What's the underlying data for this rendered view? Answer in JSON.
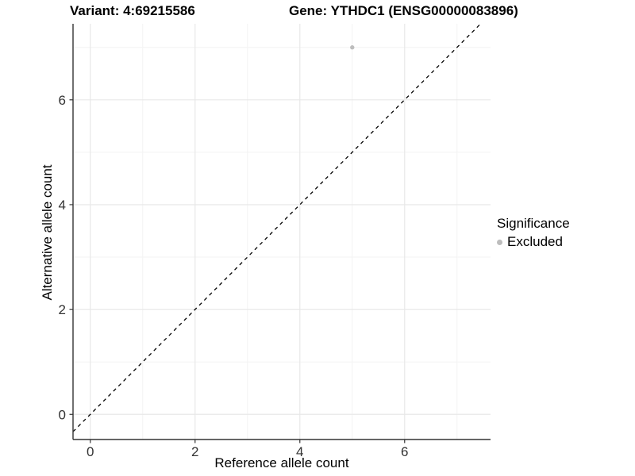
{
  "header": {
    "variant_title": "Variant: 4:69215586",
    "gene_title": "Gene: YTHDC1 (ENSG00000083896)"
  },
  "chart_data": {
    "type": "scatter",
    "title": "Variant: 4:69215586 | Gene: YTHDC1 (ENSG00000083896)",
    "xlabel": "Reference allele count",
    "ylabel": "Alternative allele count",
    "xlim": [
      -0.33,
      7.64
    ],
    "ylim": [
      -0.48,
      7.45
    ],
    "x_major_ticks": [
      0,
      2,
      4,
      6
    ],
    "y_major_ticks": [
      0,
      2,
      4,
      6
    ],
    "x_minor_ticks": [
      1,
      3,
      5,
      7
    ],
    "y_minor_ticks": [
      1,
      3,
      5,
      7
    ],
    "grid": true,
    "reference_line": {
      "style": "dashed",
      "slope": 1,
      "intercept": 0,
      "color": "#000000"
    },
    "series": [
      {
        "name": "Excluded",
        "color": "#bdbdbd",
        "points": [
          {
            "x": 5,
            "y": 7
          }
        ]
      }
    ],
    "legend": {
      "title": "Significance",
      "position": "right",
      "items": [
        {
          "label": "Excluded",
          "color": "#bdbdbd"
        }
      ]
    },
    "colors": {
      "major_grid": "#e8e8e8",
      "minor_grid": "#f3f3f3",
      "axis_line": "#333333",
      "tick_text": "#333333",
      "panel_background": "#ffffff"
    }
  }
}
